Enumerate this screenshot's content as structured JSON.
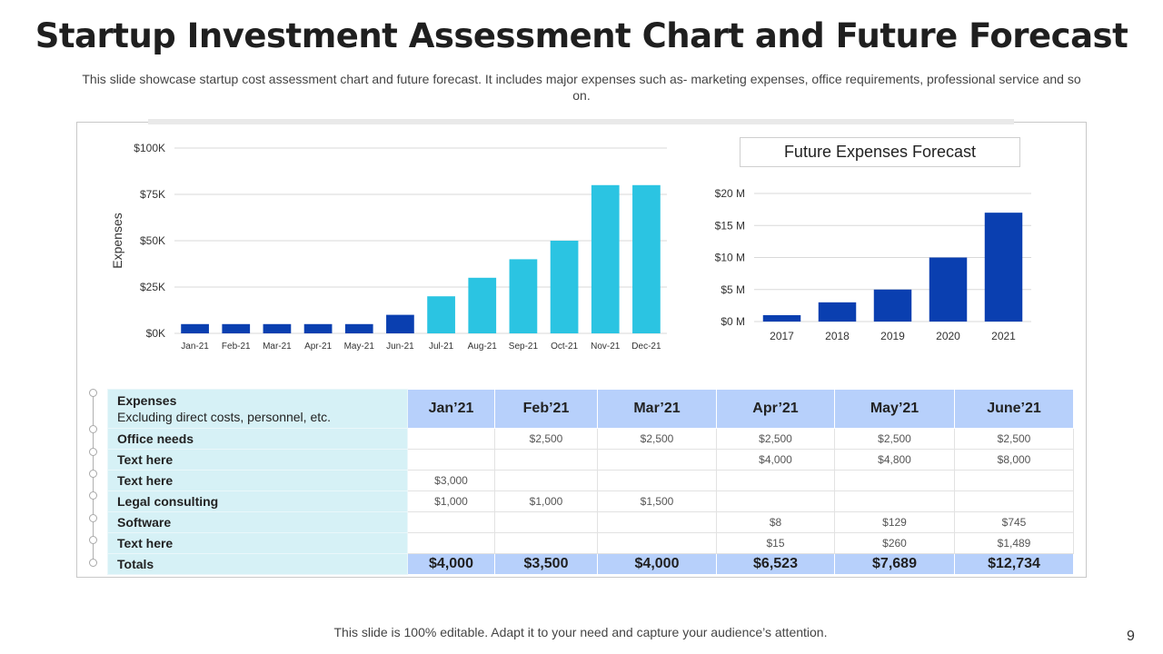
{
  "slide": {
    "title": "Startup Investment Assessment Chart and Future Forecast",
    "subtitle": "This slide showcase startup cost assessment chart and future forecast. It includes major expenses such as- marketing expenses, office requirements, professional service and so on.",
    "footer": "This slide is 100% editable. Adapt it to your need and capture your audience’s attention.",
    "page_number": "9"
  },
  "chart_data": [
    {
      "type": "bar",
      "title": "",
      "ylabel": "Expenses",
      "xlabel": "",
      "categories": [
        "Jan-21",
        "Feb-21",
        "Mar-21",
        "Apr-21",
        "May-21",
        "Jun-21",
        "Jul-21",
        "Aug-21",
        "Sep-21",
        "Oct-21",
        "Nov-21",
        "Dec-21"
      ],
      "values": [
        5000,
        5000,
        5000,
        5000,
        5000,
        10000,
        20000,
        30000,
        40000,
        50000,
        80000,
        80000
      ],
      "bar_colors": [
        "#0a3fb0",
        "#0a3fb0",
        "#0a3fb0",
        "#0a3fb0",
        "#0a3fb0",
        "#0a3fb0",
        "#2bc4e2",
        "#2bc4e2",
        "#2bc4e2",
        "#2bc4e2",
        "#2bc4e2",
        "#2bc4e2"
      ],
      "ylim": [
        0,
        100000
      ],
      "yticks": [
        0,
        25000,
        50000,
        75000,
        100000
      ],
      "ytick_labels": [
        "$0K",
        "$25K",
        "$50K",
        "$75K",
        "$100K"
      ],
      "grid": true
    },
    {
      "type": "bar",
      "title": "Future Expenses Forecast",
      "xlabel": "",
      "ylabel": "",
      "categories": [
        "2017",
        "2018",
        "2019",
        "2020",
        "2021"
      ],
      "values": [
        1,
        3,
        5,
        10,
        17
      ],
      "bar_color": "#0a3fb0",
      "ylim": [
        0,
        20
      ],
      "yticks": [
        0,
        5,
        10,
        15,
        20
      ],
      "ytick_labels": [
        "$0 M",
        "$5 M",
        "$10 M",
        "$15 M",
        "$20 M"
      ],
      "grid": true
    }
  ],
  "table": {
    "header_title": "Expenses",
    "header_subtitle": "Excluding direct costs, personnel, etc.",
    "columns": [
      "Jan’21",
      "Feb’21",
      "Mar’21",
      "Apr’21",
      "May’21",
      "June’21"
    ],
    "rows": [
      {
        "label": "Office needs",
        "cells": [
          "",
          "$2,500",
          "$2,500",
          "$2,500",
          "$2,500",
          "$2,500"
        ]
      },
      {
        "label": "Text here",
        "cells": [
          "",
          "",
          "",
          "$4,000",
          "$4,800",
          "$8,000"
        ]
      },
      {
        "label": "Text here",
        "cells": [
          "$3,000",
          "",
          "",
          "",
          "",
          ""
        ]
      },
      {
        "label": "Legal consulting",
        "cells": [
          "$1,000",
          "$1,000",
          "$1,500",
          "",
          "",
          ""
        ]
      },
      {
        "label": "Software",
        "cells": [
          "",
          "",
          "",
          "$8",
          "$129",
          "$745"
        ]
      },
      {
        "label": "Text here",
        "cells": [
          "",
          "",
          "",
          "$15",
          "$260",
          "$1,489"
        ]
      }
    ],
    "totals_label": "Totals",
    "totals": [
      "$4,000",
      "$3,500",
      "$4,000",
      "$6,523",
      "$7,689",
      "$12,734"
    ]
  }
}
